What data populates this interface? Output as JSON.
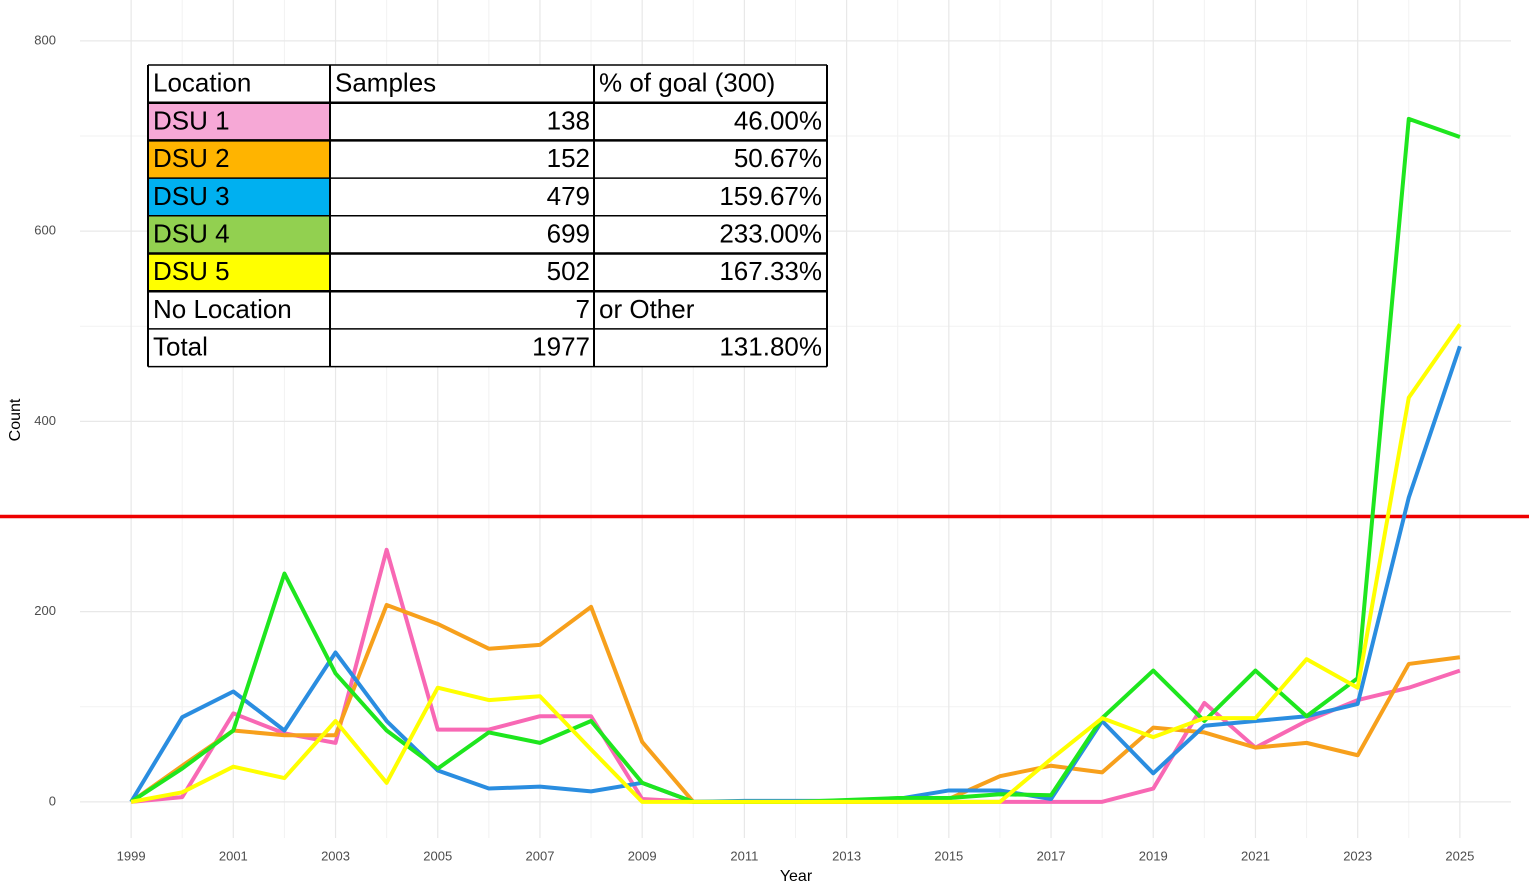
{
  "chart_data": {
    "type": "line",
    "x_label": "Year",
    "y_label": "Count",
    "x": [
      1999,
      2000,
      2001,
      2002,
      2003,
      2004,
      2005,
      2006,
      2007,
      2008,
      2009,
      2010,
      2011,
      2012,
      2013,
      2014,
      2015,
      2016,
      2017,
      2018,
      2019,
      2020,
      2021,
      2022,
      2023,
      2024,
      2025
    ],
    "series": [
      {
        "color": "#f868b4",
        "values": [
          0,
          5,
          93,
          72,
          62,
          265,
          76,
          76,
          90,
          90,
          3,
          0,
          0,
          0,
          0,
          0,
          0,
          0,
          0,
          0,
          14,
          104,
          57,
          85,
          107,
          120,
          138
        ]
      },
      {
        "color": "#f7a01c",
        "values": [
          0,
          38,
          75,
          70,
          70,
          207,
          187,
          161,
          165,
          205,
          63,
          0,
          0,
          0,
          0,
          0,
          3,
          27,
          38,
          31,
          78,
          73,
          57,
          62,
          49,
          145,
          152
        ]
      },
      {
        "color": "#2a8de0",
        "values": [
          0,
          89,
          116,
          75,
          157,
          85,
          33,
          14,
          16,
          11,
          20,
          0,
          1,
          1,
          1,
          3,
          12,
          12,
          3,
          85,
          30,
          80,
          85,
          90,
          103,
          320,
          479
        ]
      },
      {
        "color": "#1ee61e",
        "values": [
          0,
          35,
          75,
          240,
          135,
          75,
          35,
          73,
          62,
          85,
          20,
          0,
          0,
          0,
          2,
          4,
          4,
          8,
          7,
          88,
          138,
          85,
          138,
          90,
          130,
          718,
          699
        ]
      },
      {
        "color": "#ffff00",
        "values": [
          0,
          10,
          37,
          25,
          85,
          20,
          120,
          107,
          111,
          55,
          0,
          0,
          0,
          0,
          0,
          0,
          0,
          0,
          45,
          88,
          68,
          88,
          88,
          150,
          120,
          425,
          502
        ]
      }
    ],
    "reference_line": {
      "value": 300,
      "color": "#ee0000"
    },
    "xlim": [
      1998,
      2026
    ],
    "xticks": [
      1999,
      2001,
      2003,
      2005,
      2007,
      2009,
      2011,
      2013,
      2015,
      2017,
      2019,
      2021,
      2023,
      2025
    ],
    "ylim": [
      -38,
      843
    ],
    "yticks": [
      0,
      200,
      400,
      600,
      800
    ],
    "grid": true,
    "table": {
      "header": [
        "Location",
        "Samples",
        "% of goal (300)"
      ],
      "rows": [
        {
          "label": "DSU 1",
          "samples": 138,
          "percent": "46.00%",
          "color": "#f6a8d6"
        },
        {
          "label": "DSU 2",
          "samples": 152,
          "percent": "50.67%",
          "color": "#ffb400"
        },
        {
          "label": "DSU 3",
          "samples": 479,
          "percent": "159.67%",
          "color": "#00b0f0"
        },
        {
          "label": "DSU 4",
          "samples": 699,
          "percent": "233.00%",
          "color": "#92d050"
        },
        {
          "label": "DSU 5",
          "samples": 502,
          "percent": "167.33%",
          "color": "#ffff00"
        },
        {
          "label": "No Location",
          "samples": 7,
          "percent": "or Other"
        },
        {
          "label": "Total",
          "samples": 1977,
          "percent": "131.80%"
        }
      ]
    }
  }
}
